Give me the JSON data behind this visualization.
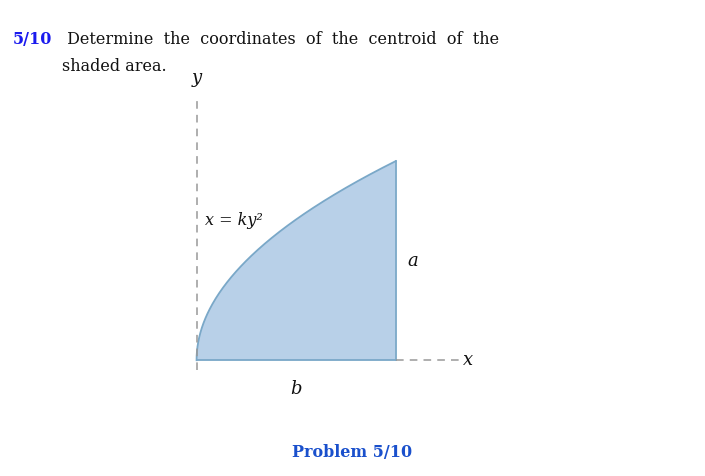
{
  "title_bold": "5/10",
  "title_rest": " Determine  the  coordinates  of  the  centroid  of  the",
  "title_line2": "shaded area.",
  "problem_label": "Problem 5/10",
  "curve_label": "x = ky²",
  "label_a": "a",
  "label_b": "b",
  "label_x": "x",
  "label_y": "y",
  "shaded_color": "#b8d0e8",
  "shaded_edge_color": "#7aa8c8",
  "background_color": "#ffffff",
  "title_color": "#111111",
  "bold_color": "#1a1aee",
  "problem_color": "#1a50cc",
  "axis_dash_color": "#999999",
  "figsize": [
    7.05,
    4.76
  ],
  "dpi": 100
}
